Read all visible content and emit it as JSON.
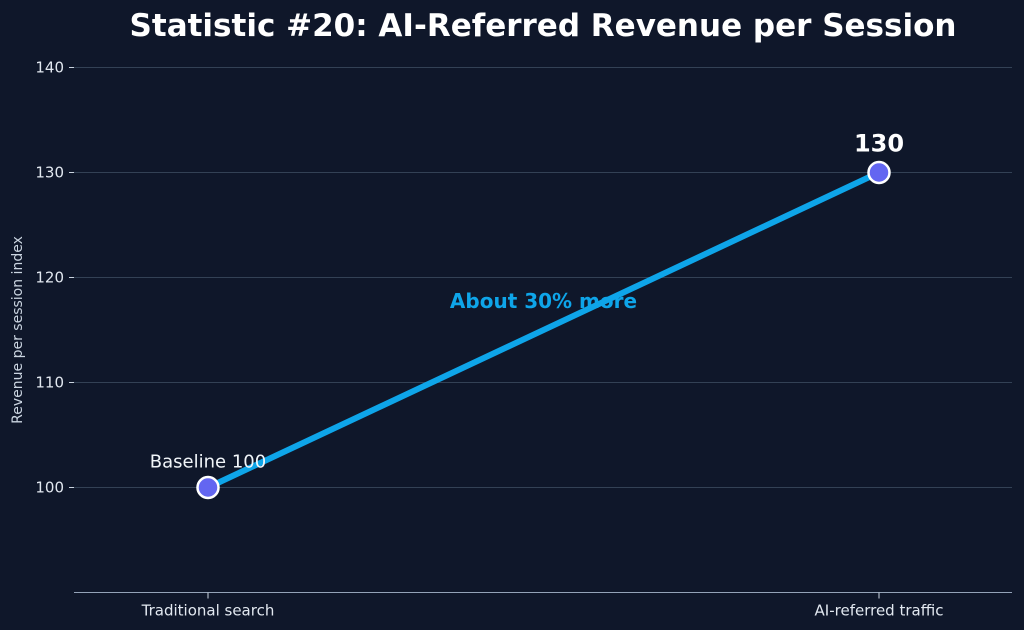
{
  "chart_data": {
    "type": "line",
    "title": "Statistic #20: AI-Referred Revenue per Session",
    "xlabel": "",
    "ylabel": "Revenue per session index",
    "categories": [
      "Traditional search",
      "AI-referred traffic"
    ],
    "series": [
      {
        "values": [
          100,
          130
        ]
      }
    ],
    "ylim": [
      90,
      142
    ],
    "yticks": [
      100,
      110,
      120,
      130,
      140
    ],
    "grid": true,
    "point_labels": [
      "Baseline 100",
      "130"
    ],
    "annotation": "About 30% more",
    "colors": {
      "background": "#0f172a",
      "line": "#0ea5e9",
      "marker_fill": "#6366f1",
      "marker_edge": "#ffffff",
      "annotation": "#0ea5e9"
    }
  }
}
